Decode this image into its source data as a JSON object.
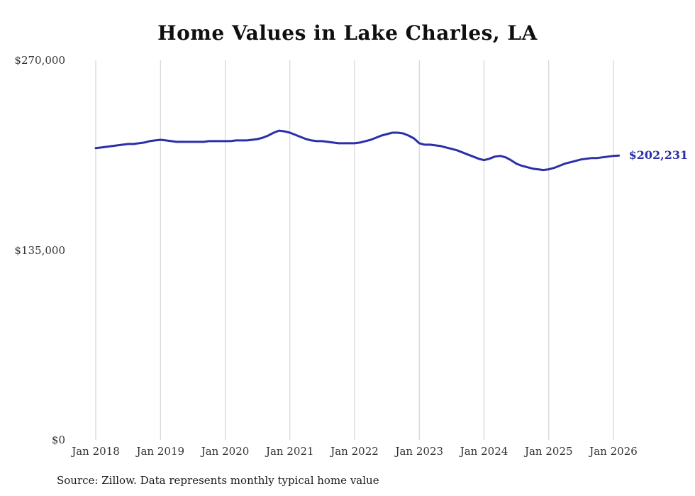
{
  "title": "Home Values in Lake Charles, LA",
  "source_note": "Source: Zillow. Data represents monthly typical home value",
  "end_label": "$202,231",
  "colors": {
    "line": "#2b2fa8",
    "end_label": "#2b2fa8",
    "gridline": "#cccccc",
    "title": "#0f0f0f",
    "axis_text": "#333333"
  },
  "chart_data": {
    "type": "line",
    "title": "Home Values in Lake Charles, LA",
    "xlabel": "",
    "ylabel": "",
    "ylim": [
      0,
      270000
    ],
    "grid": "vertical-only",
    "legend": "none",
    "y_ticks": [
      {
        "value": 0,
        "label": "$0"
      },
      {
        "value": 135000,
        "label": "$135,000"
      },
      {
        "value": 270000,
        "label": "$270,000"
      }
    ],
    "x_ticks": [
      {
        "month_index": 0,
        "label": "Jan 2018"
      },
      {
        "month_index": 12,
        "label": "Jan 2019"
      },
      {
        "month_index": 24,
        "label": "Jan 2020"
      },
      {
        "month_index": 36,
        "label": "Jan 2021"
      },
      {
        "month_index": 48,
        "label": "Jan 2022"
      },
      {
        "month_index": 60,
        "label": "Jan 2023"
      },
      {
        "month_index": 72,
        "label": "Jan 2024"
      },
      {
        "month_index": 84,
        "label": "Jan 2025"
      },
      {
        "month_index": 96,
        "label": "Jan 2026"
      }
    ],
    "series": [
      {
        "name": "Monthly typical home value",
        "start": "2018-01",
        "frequency": "monthly",
        "values": [
          207500,
          208000,
          208500,
          209000,
          209500,
          210000,
          210500,
          210500,
          211000,
          211500,
          212500,
          213000,
          213500,
          213000,
          212500,
          212000,
          212000,
          212000,
          212000,
          212000,
          212000,
          212500,
          212500,
          212500,
          212500,
          212500,
          213000,
          213000,
          213000,
          213500,
          214000,
          215000,
          216500,
          218500,
          220000,
          219500,
          218500,
          217000,
          215500,
          214000,
          213000,
          212500,
          212500,
          212000,
          211500,
          211000,
          211000,
          211000,
          211000,
          211500,
          212500,
          213500,
          215000,
          216500,
          217500,
          218500,
          218500,
          218000,
          216500,
          214500,
          211000,
          210000,
          210000,
          209500,
          209000,
          208000,
          207000,
          206000,
          204500,
          203000,
          201500,
          200000,
          199000,
          200000,
          201500,
          202000,
          201000,
          199000,
          196500,
          195000,
          194000,
          193000,
          192500,
          192000,
          192500,
          193500,
          195000,
          196500,
          197500,
          198500,
          199500,
          200000,
          200500,
          200500,
          201000,
          201500,
          202000,
          202231
        ]
      }
    ],
    "last_value": 202231,
    "last_value_label": "$202,231"
  }
}
